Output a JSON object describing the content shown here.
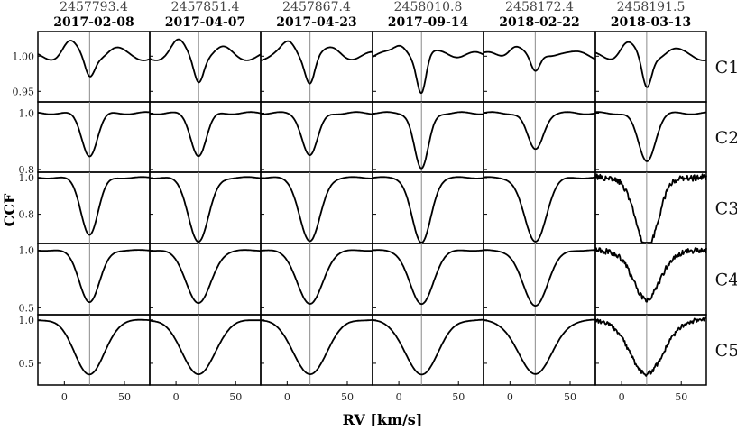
{
  "chart_data": {
    "type": "line",
    "xlabel": "RV [km/s]",
    "ylabel": "CCF",
    "xlim": [
      -22,
      71
    ],
    "x_ticks": [
      0,
      50
    ],
    "columns": [
      {
        "jd": "2457793.4",
        "date": "2017-02-08",
        "rv_marker": 21
      },
      {
        "jd": "2457851.4",
        "date": "2017-04-07",
        "rv_marker": 19
      },
      {
        "jd": "2457867.4",
        "date": "2017-04-23",
        "rv_marker": 19
      },
      {
        "jd": "2458010.8",
        "date": "2017-09-14",
        "rv_marker": 19
      },
      {
        "jd": "2458172.4",
        "date": "2018-02-22",
        "rv_marker": 21
      },
      {
        "jd": "2458191.5",
        "date": "2018-03-13",
        "rv_marker": 21
      }
    ],
    "rows": [
      {
        "label": "C1",
        "ylim": [
          0.935,
          1.035
        ],
        "y_ticks": [
          {
            "v": 1.0,
            "label": "1.00"
          },
          {
            "v": 0.95,
            "label": "0.95"
          }
        ],
        "depths": [
          0.027,
          0.032,
          0.035,
          0.055,
          0.027,
          0.045
        ],
        "widths": [
          10,
          8,
          9,
          8,
          11,
          9
        ],
        "noisy": [
          false,
          false,
          false,
          false,
          false,
          false
        ]
      },
      {
        "label": "C2",
        "ylim": [
          0.79,
          1.04
        ],
        "y_ticks": [
          {
            "v": 1.0,
            "label": "1.0"
          },
          {
            "v": 0.8,
            "label": "0.8"
          }
        ],
        "depths": [
          0.15,
          0.15,
          0.15,
          0.2,
          0.13,
          0.17
        ],
        "widths": [
          10,
          10,
          10,
          9,
          10,
          11
        ],
        "noisy": [
          false,
          false,
          false,
          false,
          false,
          false
        ]
      },
      {
        "label": "C3",
        "ylim": [
          0.64,
          1.03
        ],
        "y_ticks": [
          {
            "v": 1.0,
            "label": "1.0"
          },
          {
            "v": 0.8,
            "label": "0.8"
          }
        ],
        "depths": [
          0.31,
          0.35,
          0.35,
          0.36,
          0.35,
          0.38
        ],
        "widths": [
          11,
          13,
          13,
          12,
          14,
          15
        ],
        "noisy": [
          false,
          false,
          false,
          false,
          false,
          true
        ]
      },
      {
        "label": "C4",
        "ylim": [
          0.44,
          1.06
        ],
        "y_ticks": [
          {
            "v": 1.0,
            "label": "1.0"
          },
          {
            "v": 0.5,
            "label": "0.5"
          }
        ],
        "depths": [
          0.45,
          0.46,
          0.47,
          0.47,
          0.48,
          0.42
        ],
        "widths": [
          13,
          16,
          16,
          15,
          16,
          18
        ],
        "noisy": [
          false,
          false,
          false,
          false,
          false,
          true
        ]
      },
      {
        "label": "C5",
        "ylim": [
          0.25,
          1.06
        ],
        "y_ticks": [
          {
            "v": 1.0,
            "label": "1.0"
          },
          {
            "v": 0.5,
            "label": "0.5"
          }
        ],
        "depths": [
          0.63,
          0.63,
          0.63,
          0.63,
          0.62,
          0.62
        ],
        "widths": [
          19,
          21,
          21,
          21,
          22,
          22
        ],
        "noisy": [
          false,
          false,
          false,
          false,
          false,
          true
        ]
      }
    ]
  }
}
